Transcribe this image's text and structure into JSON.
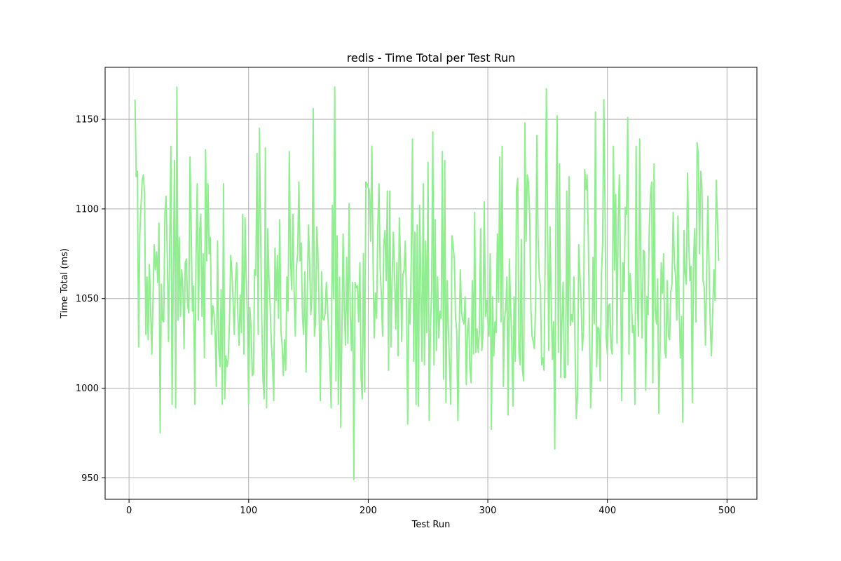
{
  "chart_data": {
    "type": "line",
    "title": "redis - Time Total per Test Run",
    "xlabel": "Test Run",
    "ylabel": "Time Total (ms)",
    "xlim": [
      -20,
      525
    ],
    "ylim": [
      938,
      1179
    ],
    "xticks": [
      0,
      100,
      200,
      300,
      400,
      500
    ],
    "yticks": [
      950,
      1000,
      1050,
      1100,
      1150
    ],
    "xtick_labels": [
      "0",
      "100",
      "200",
      "300",
      "400",
      "500"
    ],
    "ytick_labels": [
      "950",
      "1000",
      "1050",
      "1100",
      "1150"
    ],
    "grid": true,
    "legend": "none",
    "colors": {
      "series": "#90ee90"
    },
    "series": [
      {
        "x_start": 5,
        "x_step": 1,
        "values": [
          1161,
          1118,
          1121,
          1023,
          1086,
          1102,
          1116,
          1119,
          1108,
          1030,
          1062,
          1027,
          1069,
          1045,
          1019,
          1049,
          1080,
          1066,
          1076,
          1059,
          1092,
          975,
          1058,
          1038,
          1037,
          1098,
          1107,
          1073,
          1026,
          1082,
          1135,
          991,
          1063,
          1127,
          989,
          1168,
          1038,
          1084,
          1040,
          1066,
          1056,
          1022,
          1070,
          1072,
          1046,
          1042,
          1129,
          1087,
          1043,
          1057,
          991,
          1073,
          1114,
          1038,
          1087,
          1097,
          1040,
          1075,
          1017,
          1133,
          1071,
          1114,
          1075,
          1084,
          1030,
          1046,
          1042,
          1031,
          1001,
          1082,
          1022,
          1012,
          1055,
          991,
          1114,
          994,
          1018,
          1012,
          1017,
          1037,
          1074,
          1065,
          1048,
          1030,
          1059,
          1070,
          1040,
          1024,
          1052,
          1031,
          1097,
          1019,
          1095,
          1061,
          1039,
          991,
          1045,
          1034,
          1007,
          1008,
          1066,
          1063,
          1131,
          1030,
          1145,
          1088,
          1038,
          1005,
          994,
          1134,
          989,
          1089,
          1061,
          1045,
          1025,
          1013,
          993,
          1078,
          1049,
          1074,
          1039,
          1094,
          1032,
          1024,
          1007,
          1027,
          1010,
          1062,
          1043,
          1132,
          1072,
          1055,
          1097,
          1055,
          1029,
          1068,
          1075,
          1115,
          1071,
          1081,
          1040,
          1030,
          1065,
          1009,
          1051,
          1091,
          1069,
          1041,
          1052,
          1156,
          1029,
          1037,
          1090,
          1075,
          1041,
          993,
          1065,
          1039,
          1038,
          1042,
          1059,
          1045,
          1030,
          1012,
          989,
          1102,
          1050,
          1168,
          1004,
          1085,
          991,
          1062,
          978,
          1033,
          1086,
          1044,
          1024,
          1073,
          1025,
          1103,
          1040,
          1021,
          1059,
          949,
          1059,
          1056,
          1057,
          1037,
          1070,
          1006,
          994,
          1075,
          998,
          1115,
          1114,
          1112,
          1110,
          1082,
          1135,
          1073,
          1028,
          1053,
          1039,
          1090,
          1114,
          1066,
          1052,
          1029,
          1080,
          1088,
          1060,
          1110,
          1010,
          1110,
          1023,
          1062,
          1087,
          1063,
          1033,
          1070,
          1018,
          1095,
          1070,
          1026,
          1063,
          1066,
          1082,
          1050,
          980,
          1050,
          1036,
          1072,
          1139,
          1015,
          1087,
          991,
          1091,
          990,
          1102,
          1057,
          1015,
          1114,
          1013,
          1082,
          1031,
          1126,
          982,
          1033,
          1054,
          1143,
          1013,
          1094,
          1021,
          1062,
          1028,
          1043,
          1039,
          1132,
          1005,
          1127,
          992,
          1060,
          1033,
          1013,
          991,
          1085,
          1079,
          1072,
          1039,
          1032,
          982,
          1028,
          1066,
          1043,
          1038,
          1036,
          1051,
          1002,
          1032,
          1039,
          1011,
          1003,
          1060,
          1019,
          1098,
          1020,
          1033,
          1020,
          1032,
          1089,
          1021,
          1031,
          1104,
          1040,
          1049,
          1037,
          1029,
          1075,
          977,
          1051,
          1018,
          1037,
          1031,
          1086,
          1048,
          1129,
          1037,
          1135,
          1001,
          1039,
          1044,
          1062,
          985,
          1072,
          1047,
          1027,
          990,
          1051,
          1015,
          1111,
          1117,
          1020,
          1013,
          1083,
          1010,
          1004,
          1148,
          1082,
          1119,
          1115,
          1097,
          1045,
          1029,
          1026,
          1022,
          1049,
          1141,
          1085,
          1062,
          1057,
          1013,
          1017,
          1010,
          1077,
          1167,
          1089,
          1021,
          1090,
          1048,
          1016,
          1037,
          966,
          1102,
          1152,
          1020,
          1125,
          1006,
          1038,
          1059,
          1006,
          1006,
          1110,
          1013,
          1118,
          1035,
          1041,
          1037,
          1062,
          1021,
          983,
          996,
          1080,
          1063,
          1048,
          1021,
          1032,
          1122,
          1111,
          1119,
          1085,
          1035,
          989,
          1011,
          1073,
          1036,
          1154,
          1012,
          1034,
          1033,
          1004,
          1063,
          1081,
          1161,
          1101,
          1028,
          1019,
          1046,
          1047,
          1023,
          1019,
          1135,
          1066,
          1108,
          1025,
          1092,
          1119,
          1064,
          993,
          1070,
          1054,
          1101,
          1097,
          1151,
          1019,
          1064,
          1053,
          1031,
          1035,
          991,
          1135,
          1048,
          1029,
          1139,
          1063,
          1028,
          1077,
          1076,
          999,
          1051,
          1041,
          1090,
          1108,
          1115,
          1003,
          1125,
          1044,
          1036,
          1061,
          986,
          1022,
          1070,
          1053,
          1075,
          1021,
          1017,
          1060,
          1029,
          1027,
          1054,
          1058,
          1098,
          1070,
          1062,
          1038,
          1096,
          1044,
          1017,
          1040,
          981,
          1088,
          1064,
          1058,
          1120,
          1083,
          1060,
          1068,
          992,
          1071,
          1089,
          1037,
          1137,
          1130,
          1075,
          1121,
          1113,
          1060,
          1056,
          1024,
          1063,
          1107,
          1067,
          1035,
          1018,
          1042,
          1066,
          1049,
          1116,
          1094,
          1071
        ]
      }
    ]
  }
}
